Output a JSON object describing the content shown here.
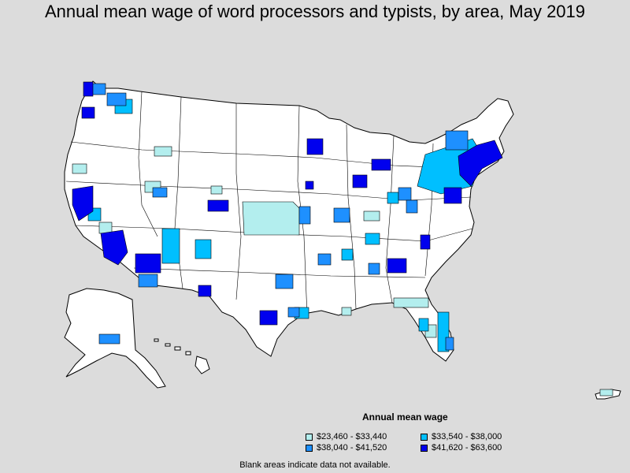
{
  "title": "Annual mean wage of word processors and typists, by area, May 2019",
  "legend": {
    "title": "Annual mean wage",
    "items": [
      {
        "label": "$23,460 - $33,440",
        "color": "#b3eeee"
      },
      {
        "label": "$33,540 - $38,000",
        "color": "#00bfff"
      },
      {
        "label": "$38,040 - $41,520",
        "color": "#1e90ff"
      },
      {
        "label": "$41,620 - $63,600",
        "color": "#0000ee"
      }
    ]
  },
  "footnote": "Blank areas indicate data not available.",
  "colors": {
    "background": "#dcdcdc",
    "land": "#ffffff",
    "border": "#000000"
  }
}
